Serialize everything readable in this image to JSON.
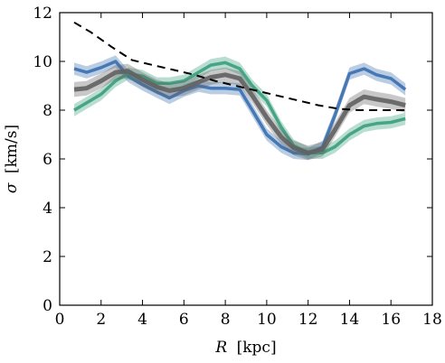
{
  "chart_data": {
    "type": "line",
    "title": "",
    "xlabel_var": "R",
    "xlabel_unit": "[kpc]",
    "ylabel_var": "σ",
    "ylabel_unit": "[km/s]",
    "xlim": [
      0,
      18
    ],
    "ylim": [
      0,
      12
    ],
    "xticks": [
      0,
      2,
      4,
      6,
      8,
      10,
      12,
      14,
      16,
      18
    ],
    "yticks": [
      0,
      2,
      4,
      6,
      8,
      10,
      12
    ],
    "grid": false,
    "legend": "none",
    "series": [
      {
        "color": "#3a6fb0",
        "style": "band",
        "band_halfwidth": 0.25,
        "x": [
          0.7,
          1.3,
          2.0,
          2.7,
          3.3,
          4.0,
          4.7,
          5.3,
          6.0,
          6.7,
          7.3,
          8.0,
          8.7,
          9.3,
          10.0,
          10.7,
          11.3,
          12.0,
          12.7,
          13.3,
          14.0,
          14.7,
          15.3,
          16.0,
          16.7
        ],
        "y": [
          9.7,
          9.55,
          9.75,
          10.0,
          9.4,
          9.05,
          8.75,
          8.5,
          8.8,
          9.0,
          8.9,
          8.9,
          8.85,
          8.0,
          7.0,
          6.5,
          6.25,
          6.2,
          6.5,
          7.8,
          9.5,
          9.7,
          9.45,
          9.3,
          8.85
        ]
      },
      {
        "color": "#3a9e7e",
        "style": "band",
        "band_halfwidth": 0.25,
        "x": [
          0.7,
          1.3,
          2.0,
          2.7,
          3.3,
          4.0,
          4.7,
          5.3,
          6.0,
          6.7,
          7.3,
          8.0,
          8.7,
          9.3,
          10.0,
          10.7,
          11.3,
          12.0,
          12.7,
          13.3,
          14.0,
          14.7,
          15.3,
          16.0,
          16.7
        ],
        "y": [
          8.0,
          8.3,
          8.65,
          9.2,
          9.5,
          9.4,
          9.1,
          9.1,
          9.2,
          9.55,
          9.85,
          9.95,
          9.7,
          9.0,
          8.4,
          7.3,
          6.55,
          6.25,
          6.25,
          6.5,
          7.0,
          7.35,
          7.45,
          7.5,
          7.65
        ]
      },
      {
        "color": "#606060",
        "style": "band",
        "band_halfwidth": 0.3,
        "x": [
          0.7,
          1.3,
          2.0,
          2.7,
          3.3,
          4.0,
          4.7,
          5.3,
          6.0,
          6.7,
          7.3,
          8.0,
          8.7,
          9.3,
          10.0,
          10.7,
          11.3,
          12.0,
          12.7,
          13.3,
          14.0,
          14.7,
          15.3,
          16.0,
          16.7
        ],
        "y": [
          8.85,
          8.9,
          9.2,
          9.55,
          9.6,
          9.25,
          8.95,
          8.8,
          8.9,
          9.15,
          9.35,
          9.45,
          9.3,
          8.6,
          7.7,
          6.9,
          6.45,
          6.25,
          6.4,
          7.2,
          8.2,
          8.55,
          8.45,
          8.35,
          8.2
        ]
      },
      {
        "color": "#000000",
        "style": "dashed",
        "x": [
          0.7,
          1.5,
          2.5,
          3.5,
          4.5,
          5.5,
          6.5,
          7.5,
          8.5,
          9.5,
          10.5,
          11.5,
          12.5,
          13.5,
          14.5,
          15.5,
          16.7
        ],
        "y": [
          11.6,
          11.2,
          10.6,
          10.05,
          9.85,
          9.65,
          9.45,
          9.2,
          9.0,
          8.8,
          8.6,
          8.4,
          8.2,
          8.05,
          8.0,
          8.0,
          8.0
        ]
      }
    ]
  }
}
